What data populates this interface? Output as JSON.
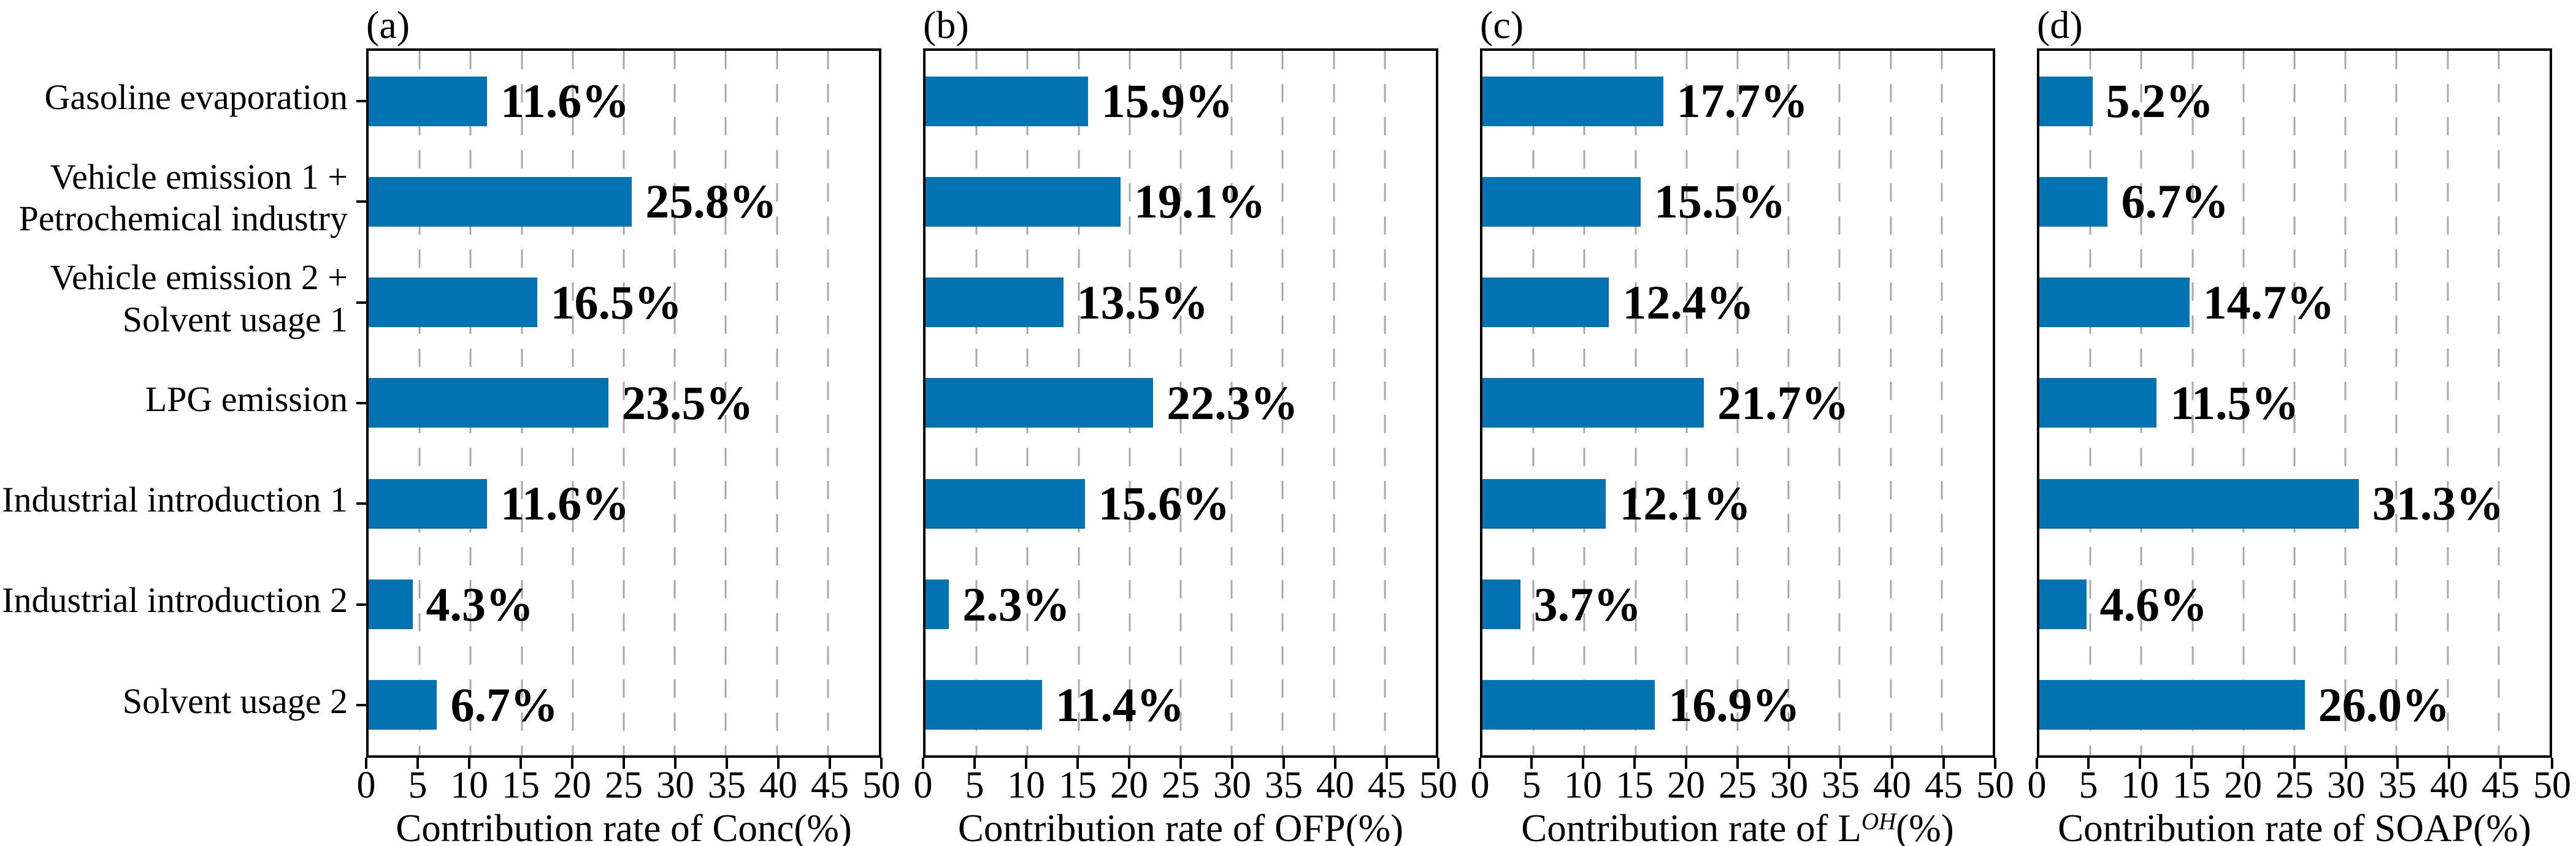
{
  "chart_data": {
    "type": "bar",
    "orientation": "horizontal",
    "categories": [
      "Gasoline evaporation",
      "Vehicle emission 1 + Petrochemical industry",
      "Vehicle emission 2 + Solvent usage 1",
      "LPG emission",
      "Industrial introduction 1",
      "Industrial introduction 2",
      "Solvent usage 2"
    ],
    "series": [
      {
        "name": "Contribution rate of Conc(%)",
        "panel": "(a)",
        "values": [
          11.6,
          25.8,
          16.5,
          23.5,
          11.6,
          4.3,
          6.7
        ]
      },
      {
        "name": "Contribution rate of OFP(%)",
        "panel": "(b)",
        "values": [
          15.9,
          19.1,
          13.5,
          22.3,
          15.6,
          2.3,
          11.4
        ]
      },
      {
        "name": "Contribution rate of L^OH(%)",
        "panel": "(c)",
        "values": [
          17.7,
          15.5,
          12.4,
          21.7,
          12.1,
          3.7,
          16.9
        ]
      },
      {
        "name": "Contribution rate of SOAP(%)",
        "panel": "(d)",
        "values": [
          5.2,
          6.7,
          14.7,
          11.5,
          31.3,
          4.6,
          26.0
        ]
      }
    ],
    "xlim": [
      0,
      50
    ],
    "xtick_step": 5,
    "grid": "vertical-dashed",
    "legend": "none",
    "value_label_format": "{value}%",
    "bar_color": "#0173b2"
  },
  "figure": {
    "category_lines": [
      [
        "Gasoline evaporation"
      ],
      [
        "Vehicle emission 1 +",
        "Petrochemical industry"
      ],
      [
        "Vehicle emission 2 +",
        "Solvent usage 1"
      ],
      [
        "LPG emission"
      ],
      [
        "Industrial introduction 1"
      ],
      [
        "Industrial introduction 2"
      ],
      [
        "Solvent usage 2"
      ]
    ],
    "xticks": [
      "0",
      "5",
      "10",
      "15",
      "20",
      "25",
      "30",
      "35",
      "40",
      "45",
      "50"
    ],
    "xmax": 50,
    "panels": [
      {
        "letter": "(a)",
        "xlabel_prefix": "Contribution rate of Conc(%)",
        "xlabel_sup": "",
        "xlabel_suffix": "",
        "values": [
          11.6,
          25.8,
          16.5,
          23.5,
          11.6,
          4.3,
          6.7
        ],
        "value_labels": [
          "11.6%",
          "25.8%",
          "16.5%",
          "23.5%",
          "11.6%",
          "4.3%",
          "6.7%"
        ]
      },
      {
        "letter": "(b)",
        "xlabel_prefix": "Contribution rate of OFP(%)",
        "xlabel_sup": "",
        "xlabel_suffix": "",
        "values": [
          15.9,
          19.1,
          13.5,
          22.3,
          15.6,
          2.3,
          11.4
        ],
        "value_labels": [
          "15.9%",
          "19.1%",
          "13.5%",
          "22.3%",
          "15.6%",
          "2.3%",
          "11.4%"
        ]
      },
      {
        "letter": "(c)",
        "xlabel_prefix": "Contribution rate of L",
        "xlabel_sup": "OH",
        "xlabel_suffix": "(%)",
        "values": [
          17.7,
          15.5,
          12.4,
          21.7,
          12.1,
          3.7,
          16.9
        ],
        "value_labels": [
          "17.7%",
          "15.5%",
          "12.4%",
          "21.7%",
          "12.1%",
          "3.7%",
          "16.9%"
        ]
      },
      {
        "letter": "(d)",
        "xlabel_prefix": "Contribution rate of SOAP(%)",
        "xlabel_sup": "",
        "xlabel_suffix": "",
        "values": [
          5.2,
          6.7,
          14.7,
          11.5,
          31.3,
          4.6,
          26.0
        ],
        "value_labels": [
          "5.2%",
          "6.7%",
          "14.7%",
          "11.5%",
          "31.3%",
          "4.6%",
          "26.0%"
        ]
      }
    ],
    "colors": {
      "bar": "#0173b2",
      "grid": "#a8a8a8",
      "axis": "#000000",
      "text": "#000000",
      "background": "#ffffff"
    }
  }
}
